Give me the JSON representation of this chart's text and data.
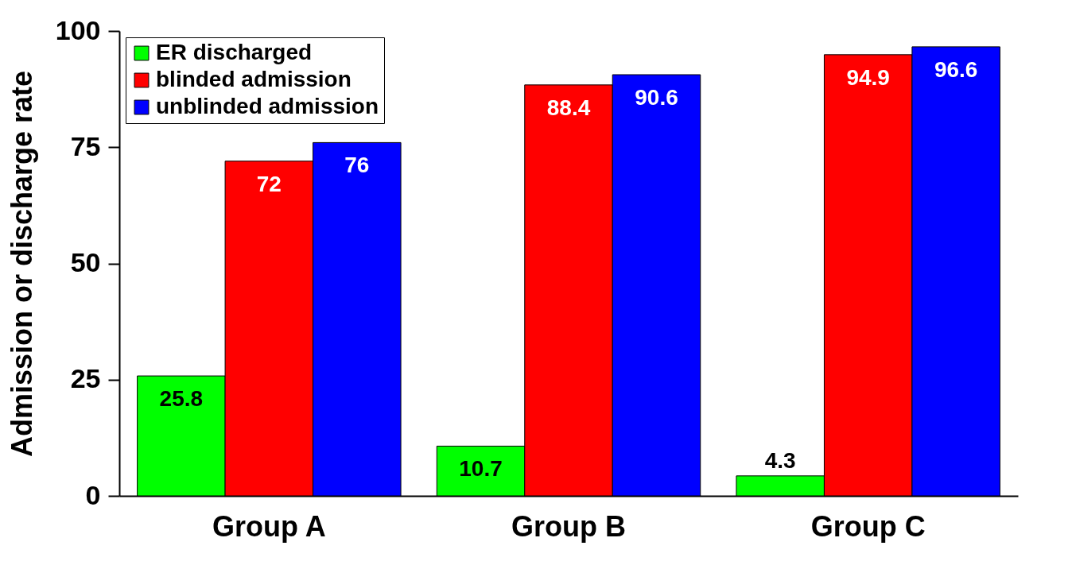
{
  "chart_data": {
    "type": "bar",
    "ylabel": "Admission or discharge rate",
    "categories": [
      "Group A",
      "Group B",
      "Group C"
    ],
    "series": [
      {
        "name": "ER discharged",
        "color": "#00ff00",
        "values": [
          25.8,
          10.7,
          4.3
        ]
      },
      {
        "name": "blinded admission",
        "color": "#ff0000",
        "values": [
          72,
          88.4,
          94.9
        ]
      },
      {
        "name": "unblinded admission",
        "color": "#0000ff",
        "values": [
          76,
          90.6,
          96.6
        ]
      }
    ],
    "ylim": [
      0,
      100
    ],
    "yticks": [
      0,
      25,
      50,
      75,
      100
    ],
    "grid": false,
    "legend": "top left",
    "data_labels": true
  }
}
